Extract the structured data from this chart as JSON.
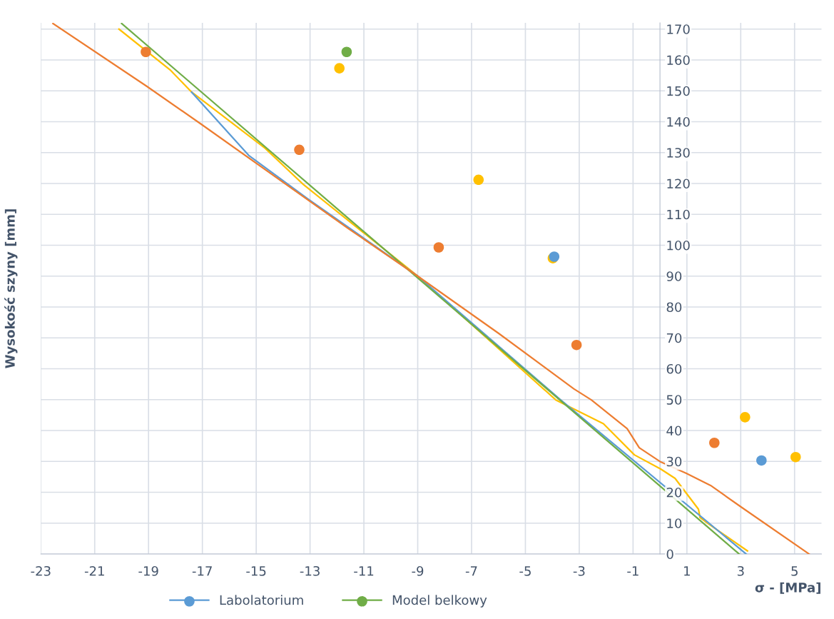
{
  "chart_data": {
    "type": "line",
    "xlabel": "σ - [MPa]",
    "ylabel": "Wysokość szyny [mm]",
    "xlim": [
      -23,
      6
    ],
    "xticks": [
      -23,
      -21,
      -19,
      -17,
      -15,
      -13,
      -11,
      -9,
      -7,
      -5,
      -3,
      -1,
      1,
      3,
      5
    ],
    "ylim": [
      0,
      172
    ],
    "yticks": [
      0,
      10,
      20,
      30,
      40,
      50,
      60,
      70,
      80,
      90,
      100,
      110,
      120,
      130,
      140,
      150,
      160,
      170
    ],
    "grid": true,
    "legend": "bottom left",
    "marker": "none",
    "line_style": "solid",
    "series": [
      {
        "color": "#ffc000",
        "x": [
          -20.1,
          -18.2,
          -17.4,
          -14.67,
          -13.24,
          -9,
          -3.87,
          -2.1,
          -0.95,
          0.03,
          0.56,
          1.43,
          1.49,
          1.78,
          3.25
        ],
        "values": [
          170,
          156.8,
          149.6,
          131.4,
          119.6,
          90,
          49.9,
          42.2,
          32.1,
          27.5,
          24.5,
          14.5,
          11.8,
          9.9,
          1
        ]
      },
      {
        "name": "Labolatorium",
        "color": "#5b9bd5",
        "x": [
          -17.4,
          -15.28,
          -13.08,
          -9,
          -3.69,
          3.2
        ],
        "values": [
          149.6,
          129.1,
          115,
          90,
          49.9,
          0
        ]
      },
      {
        "name": "Model belkowy",
        "color": "#70ad47",
        "x": [
          -20,
          2.94
        ],
        "values": [
          171.8,
          0
        ]
      },
      {
        "color": "#ed7d31",
        "x": [
          -22.55,
          -19.07,
          -17.06,
          -11.56,
          -9,
          -6,
          -3.2,
          -2.55,
          -1.22,
          -0.77,
          0.03,
          0.98,
          1.88,
          3.02,
          5.54
        ],
        "values": [
          171.8,
          151.5,
          139.3,
          105.3,
          90,
          71.5,
          53.5,
          49.9,
          40.6,
          34.4,
          29.8,
          26.1,
          22.2,
          15.2,
          0
        ]
      },
      {
        "type": "scatter",
        "marker": "circle",
        "color": "#ffc000",
        "x": [
          -11.91,
          -6.74,
          -3.98,
          3.16,
          5.04
        ],
        "values": [
          157.3,
          121.2,
          95.8,
          44.3,
          31.4
        ]
      },
      {
        "type": "scatter",
        "marker": "circle",
        "color": "#5b9bd5",
        "x": [
          -3.93,
          3.77
        ],
        "values": [
          96.3,
          30.3
        ]
      },
      {
        "type": "scatter",
        "marker": "circle",
        "color": "#70ad47",
        "x": [
          -11.64
        ],
        "values": [
          162.6
        ]
      },
      {
        "type": "scatter",
        "marker": "circle",
        "color": "#ed7d31",
        "x": [
          -19.1,
          -13.4,
          -8.22,
          -3.1,
          2.02
        ],
        "values": [
          162.6,
          130.9,
          99.3,
          67.7,
          36.0
        ]
      }
    ]
  }
}
